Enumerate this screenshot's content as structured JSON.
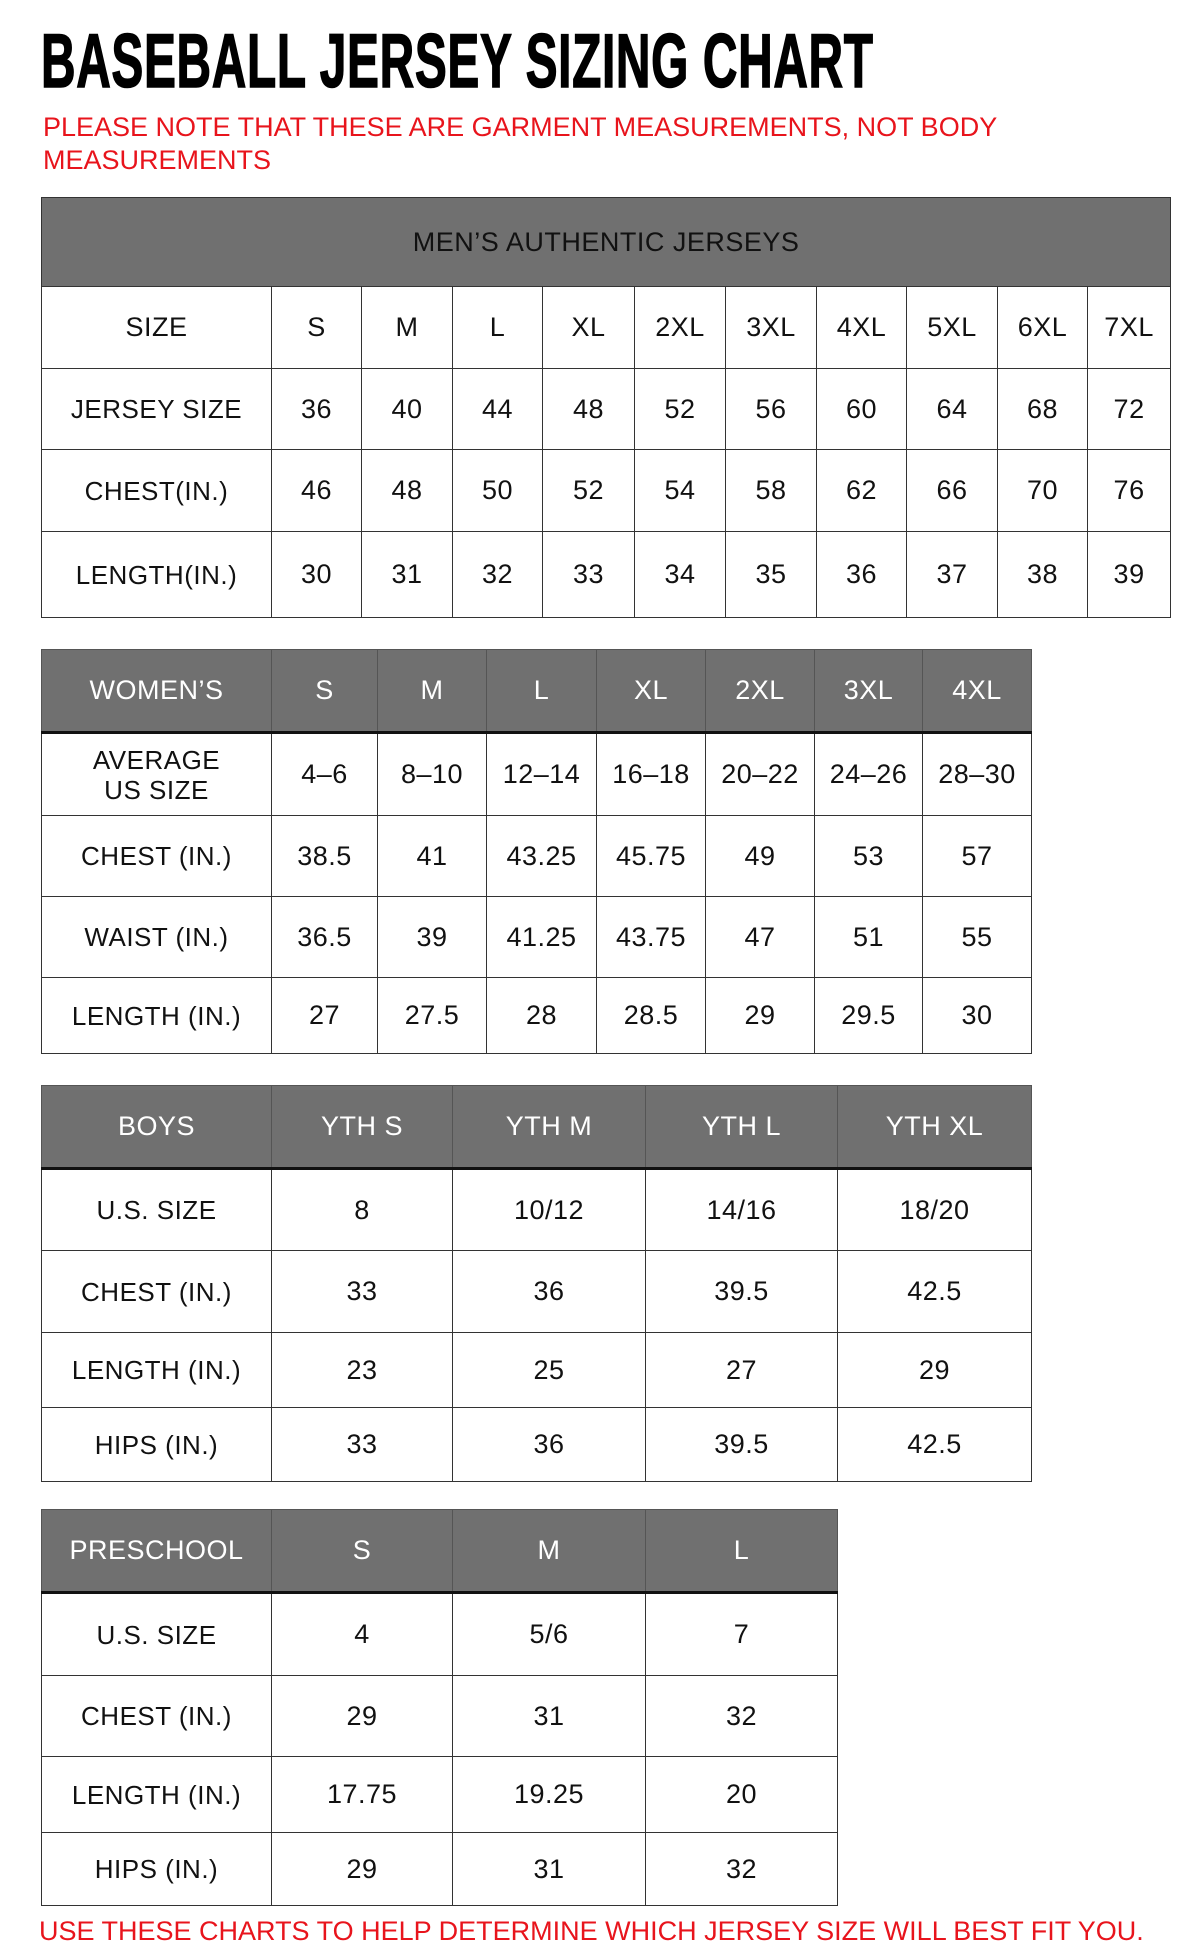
{
  "title": "BASEBALL JERSEY SIZING CHART",
  "note_line1": "PLEASE NOTE THAT THESE ARE GARMENT MEASUREMENTS, NOT BODY",
  "note_line2": "MEASUREMENTS",
  "footer": "USE THESE CHARTS TO HELP DETERMINE WHICH JERSEY SIZE WILL BEST FIT YOU.",
  "colors": {
    "header_bg": "#707070",
    "note_red": "#e8141c"
  },
  "tables": [
    {
      "caption": "MEN’S AUTHENTIC JERSEYS",
      "header": [
        "SIZE",
        "S",
        "M",
        "L",
        "XL",
        "2XL",
        "3XL",
        "4XL",
        "5XL",
        "6XL",
        "7XL"
      ],
      "header_style": "plain",
      "rows": [
        [
          "JERSEY SIZE",
          "36",
          "40",
          "44",
          "48",
          "52",
          "56",
          "60",
          "64",
          "68",
          "72"
        ],
        [
          "CHEST(IN.)",
          "46",
          "48",
          "50",
          "52",
          "54",
          "58",
          "62",
          "66",
          "70",
          "76"
        ],
        [
          "LENGTH(IN.)",
          "30",
          "31",
          "32",
          "33",
          "34",
          "35",
          "36",
          "37",
          "38",
          "39"
        ]
      ]
    },
    {
      "header": [
        "WOMEN’S",
        "S",
        "M",
        "L",
        "XL",
        "2XL",
        "3XL",
        "4XL"
      ],
      "header_style": "grey",
      "rows": [
        [
          "AVERAGE US SIZE",
          "4–6",
          "8–10",
          "12–14",
          "16–18",
          "20–22",
          "24–26",
          "28–30"
        ],
        [
          "CHEST (IN.)",
          "38.5",
          "41",
          "43.25",
          "45.75",
          "49",
          "53",
          "57"
        ],
        [
          "WAIST (IN.)",
          "36.5",
          "39",
          "41.25",
          "43.75",
          "47",
          "51",
          "55"
        ],
        [
          "LENGTH (IN.)",
          "27",
          "27.5",
          "28",
          "28.5",
          "29",
          "29.5",
          "30"
        ]
      ]
    },
    {
      "header": [
        "BOYS",
        "YTH S",
        "YTH M",
        "YTH L",
        "YTH XL"
      ],
      "header_style": "grey",
      "rows": [
        [
          "U.S. SIZE",
          "8",
          "10/12",
          "14/16",
          "18/20"
        ],
        [
          "CHEST (IN.)",
          "33",
          "36",
          "39.5",
          "42.5"
        ],
        [
          "LENGTH (IN.)",
          "23",
          "25",
          "27",
          "29"
        ],
        [
          "HIPS (IN.)",
          "33",
          "36",
          "39.5",
          "42.5"
        ]
      ]
    },
    {
      "header": [
        "PRESCHOOL",
        "S",
        "M",
        "L"
      ],
      "header_style": "grey",
      "rows": [
        [
          "U.S. SIZE",
          "4",
          "5/6",
          "7"
        ],
        [
          "CHEST (IN.)",
          "29",
          "31",
          "32"
        ],
        [
          "LENGTH (IN.)",
          "17.75",
          "19.25",
          "20"
        ],
        [
          "HIPS (IN.)",
          "29",
          "31",
          "32"
        ]
      ]
    }
  ]
}
